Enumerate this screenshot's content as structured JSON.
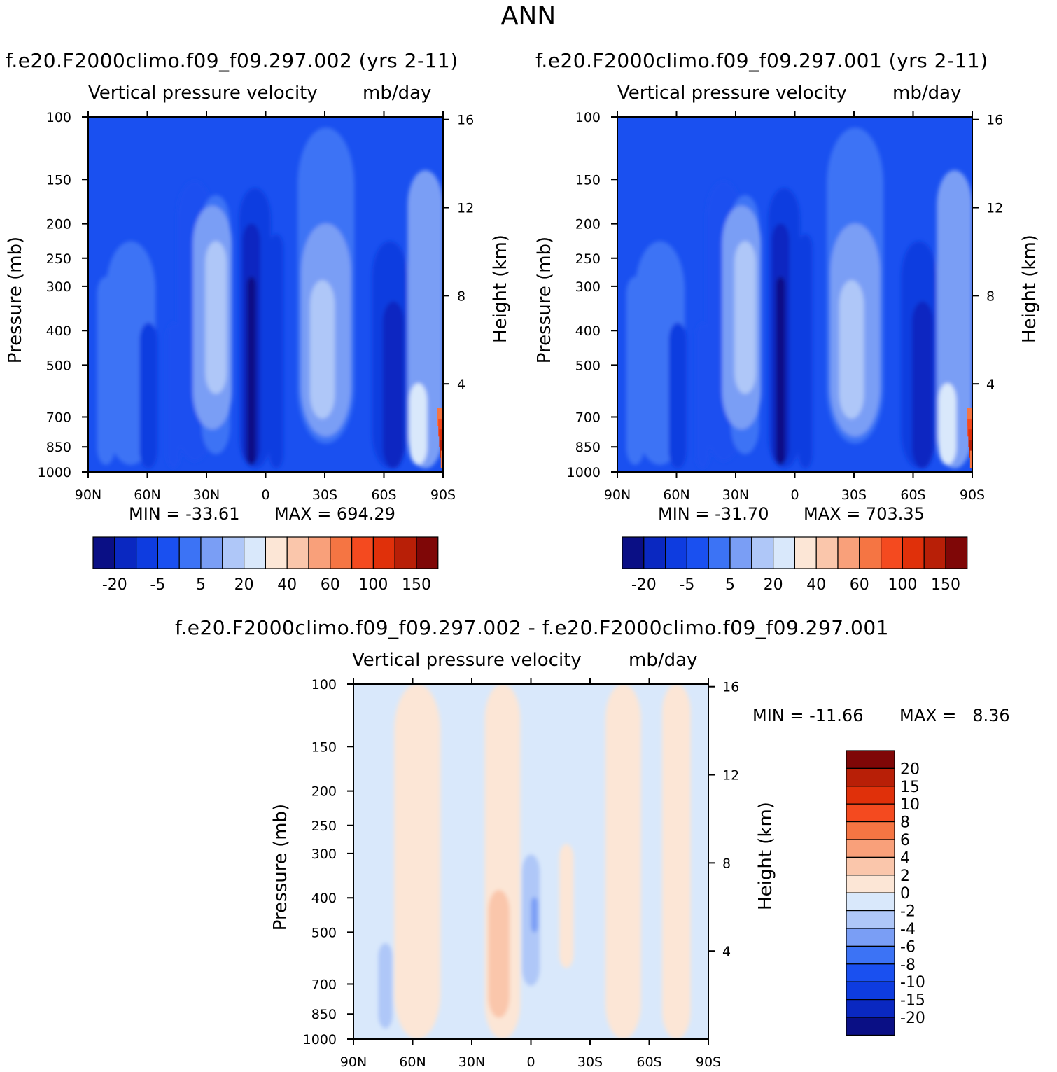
{
  "page": {
    "title": "ANN"
  },
  "colors": {
    "abs_scale": [
      "#0a0f85",
      "#0a28c1",
      "#0e3ce0",
      "#1a50f0",
      "#3c73f5",
      "#7a9ef5",
      "#afc7f8",
      "#d9e8fb",
      "#fce6d6",
      "#fac6ab",
      "#f9a07a",
      "#f57543",
      "#f44a1f",
      "#e0300a",
      "#b81f07",
      "#7f0707"
    ],
    "diff_scale": [
      "#0a0f85",
      "#0a28c1",
      "#0e3ce0",
      "#1a50f0",
      "#3c73f5",
      "#7a9ef5",
      "#afc7f8",
      "#d9e8fb",
      "#fce6d6",
      "#fac6ab",
      "#f9a07a",
      "#f57543",
      "#f44a1f",
      "#e0300a",
      "#b81f07",
      "#7f0707"
    ]
  },
  "chart_data": [
    {
      "type": "heatmap",
      "panel": "test",
      "case_title": "f.e20.F2000climo.f09_f09.297.002 (yrs 2-11)",
      "var_title": "Vertical pressure velocity",
      "units": "mb/day",
      "ylabel": "Pressure (mb)",
      "y2label": "Height (km)",
      "x_ticks": [
        "90N",
        "60N",
        "30N",
        "0",
        "30S",
        "60S",
        "90S"
      ],
      "y_ticks": [
        100,
        150,
        200,
        250,
        300,
        400,
        500,
        700,
        850,
        1000
      ],
      "y2_ticks": [
        16,
        12,
        8,
        4
      ],
      "min": -33.61,
      "max": 694.29,
      "min_label": "MIN = -33.61",
      "max_label": "MAX = 694.29",
      "colorbar_labels": [
        "-20",
        "-5",
        "5",
        "20",
        "40",
        "60",
        "100",
        "150"
      ],
      "colorbar_levels": 16
    },
    {
      "type": "heatmap",
      "panel": "control",
      "case_title": "f.e20.F2000climo.f09_f09.297.001 (yrs 2-11)",
      "var_title": "Vertical pressure velocity",
      "units": "mb/day",
      "ylabel": "Pressure (mb)",
      "y2label": "Height (km)",
      "x_ticks": [
        "90N",
        "60N",
        "30N",
        "0",
        "30S",
        "60S",
        "90S"
      ],
      "y_ticks": [
        100,
        150,
        200,
        250,
        300,
        400,
        500,
        700,
        850,
        1000
      ],
      "y2_ticks": [
        16,
        12,
        8,
        4
      ],
      "min": -31.7,
      "max": 703.35,
      "min_label": "MIN = -31.70",
      "max_label": "MAX = 703.35",
      "colorbar_labels": [
        "-20",
        "-5",
        "5",
        "20",
        "40",
        "60",
        "100",
        "150"
      ],
      "colorbar_levels": 16
    },
    {
      "type": "heatmap",
      "panel": "difference",
      "case_title": "f.e20.F2000climo.f09_f09.297.002 - f.e20.F2000climo.f09_f09.297.001",
      "var_title": "Vertical pressure velocity",
      "units": "mb/day",
      "ylabel": "Pressure (mb)",
      "y2label": "Height (km)",
      "x_ticks": [
        "90N",
        "60N",
        "30N",
        "0",
        "30S",
        "60S",
        "90S"
      ],
      "y_ticks": [
        100,
        150,
        200,
        250,
        300,
        400,
        500,
        700,
        850,
        1000
      ],
      "y2_ticks": [
        16,
        12,
        8,
        4
      ],
      "min": -11.66,
      "max": 8.36,
      "min_label": "MIN = -11.66",
      "max_label": "MAX =   8.36",
      "colorbar_labels": [
        "20",
        "15",
        "10",
        "8",
        "6",
        "4",
        "2",
        "0",
        "-2",
        "-4",
        "-6",
        "-8",
        "-10",
        "-15",
        "-20"
      ],
      "colorbar_levels": 16
    }
  ]
}
